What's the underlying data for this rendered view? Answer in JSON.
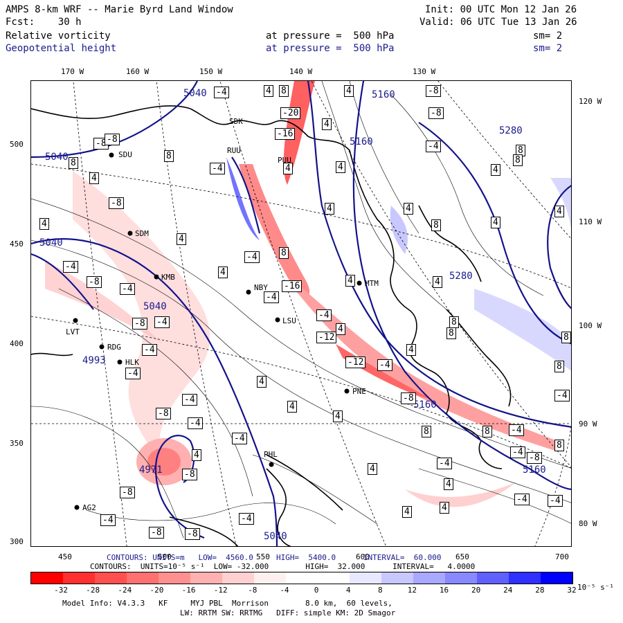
{
  "header": {
    "title": "AMPS 8-km WRF -- Marie Byrd Land Window",
    "fcst": "Fcst:    30 h",
    "init": "Init: 00 UTC Mon 12 Jan 26",
    "valid": "Valid: 06 UTC Tue 13 Jan 26",
    "field1": {
      "name": "Relative vorticity",
      "level": "at pressure =  500 hPa",
      "sm": "sm= 2"
    },
    "field2": {
      "name": "Geopotential height",
      "level": "at pressure =  500 hPa",
      "sm": "sm= 2"
    }
  },
  "axes": {
    "top": [
      "170 W",
      "160 W",
      "150 W",
      "140 W",
      "130 W"
    ],
    "right": [
      "120 W",
      "110 W",
      "100 W",
      "90 W",
      "80 W"
    ],
    "left": [
      "500",
      "450",
      "400",
      "350",
      "300"
    ],
    "bottom": [
      "450",
      "500",
      "550",
      "600",
      "650",
      "700"
    ]
  },
  "stations": [
    "SDK",
    "RUU",
    "SDM",
    "KMB",
    "NBY",
    "LVT",
    "RDG",
    "HLK",
    "MTM",
    "LSU",
    "PNE",
    "PHL",
    "AG2",
    "PUU",
    "SDU"
  ],
  "height_labels": [
    "5040",
    "5160",
    "5280",
    "4993",
    "4971"
  ],
  "vorticity_labels": [
    "4",
    "8",
    "-4",
    "-8",
    "-12",
    "-16",
    "-20"
  ],
  "contour_info": {
    "height": "CONTOURS: UNITS=m   LOW=  4560.0     HIGH=  5400.0      INTERVAL=  60.000",
    "vort": "CONTOURS:  UNITS=10⁻⁵ s⁻¹  LOW= -32.000        HIGH=  32.000      INTERVAL=   4.0000"
  },
  "colorbar": {
    "colors": [
      "#ff0000",
      "#ff3030",
      "#ff5050",
      "#ff7070",
      "#ff9090",
      "#ffb0b0",
      "#ffd0d0",
      "#fff0f0",
      "#ffffff",
      "#ffffff",
      "#e8e8ff",
      "#c8c8ff",
      "#a8a8ff",
      "#8888ff",
      "#6060ff",
      "#3030ff",
      "#0000ff"
    ],
    "ticks": [
      "-32",
      "-28",
      "-24",
      "-20",
      "-16",
      "-12",
      "-8",
      "-4",
      "0",
      "4",
      "8",
      "12",
      "16",
      "20",
      "24",
      "28",
      "32"
    ],
    "unit": "10⁻⁵ s⁻¹"
  },
  "footer": {
    "line1": "Model Info: V4.3.3   KF     MYJ PBL  Morrison        8.0 km,  60 levels,",
    "line2": "LW: RRTM SW: RRTMG   DIFF: simple KM: 2D Smagor"
  }
}
